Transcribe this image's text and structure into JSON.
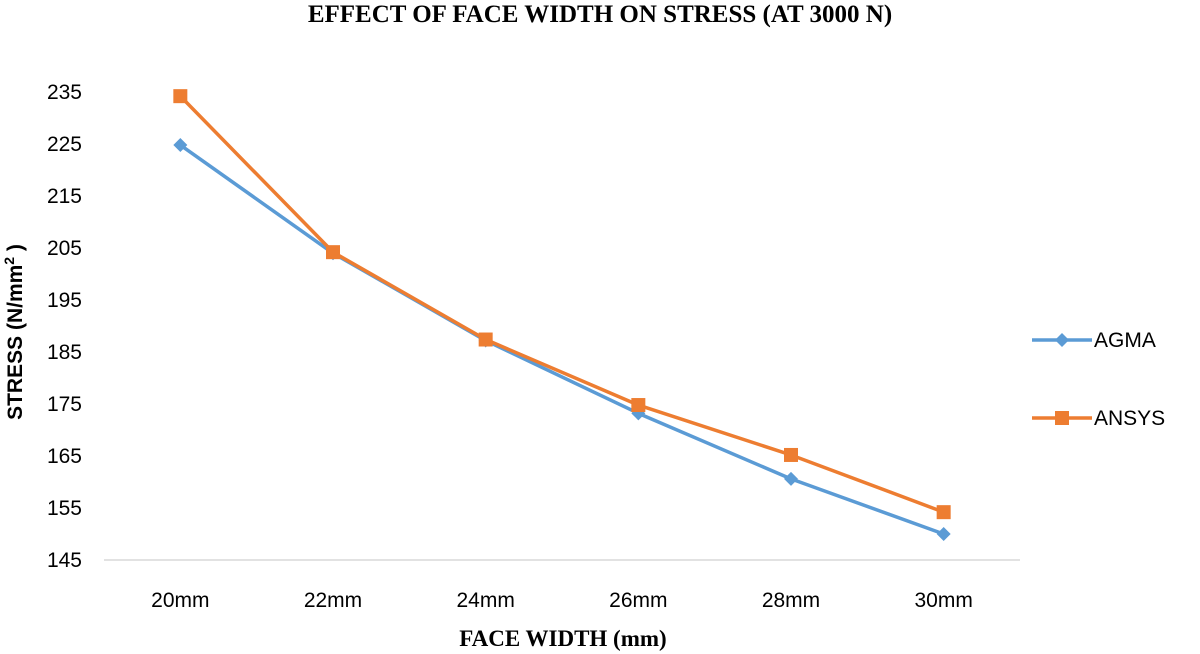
{
  "chart_data": {
    "type": "line",
    "title": "EFFECT OF FACE WIDTH ON STRESS (AT 3000 N)",
    "xlabel": "FACE WIDTH (mm)",
    "ylabel": "STRESS (N/mm",
    "ylabel_sup": "2",
    "ylabel_close": " )",
    "categories": [
      "20mm",
      "22mm",
      "24mm",
      "26mm",
      "28mm",
      "30mm"
    ],
    "ylim": [
      145,
      235
    ],
    "yticks": [
      145,
      155,
      165,
      175,
      185,
      195,
      205,
      215,
      225,
      235
    ],
    "grid": false,
    "legend": "right",
    "series": [
      {
        "name": "AGMA",
        "color": "#5B9BD5",
        "marker": "diamond",
        "values": [
          224.8,
          204.0,
          187.2,
          173.2,
          160.6,
          150.0
        ]
      },
      {
        "name": "ANSYS",
        "color": "#ED7D31",
        "marker": "square",
        "values": [
          234.2,
          204.2,
          187.4,
          174.8,
          165.2,
          154.2
        ]
      }
    ]
  }
}
